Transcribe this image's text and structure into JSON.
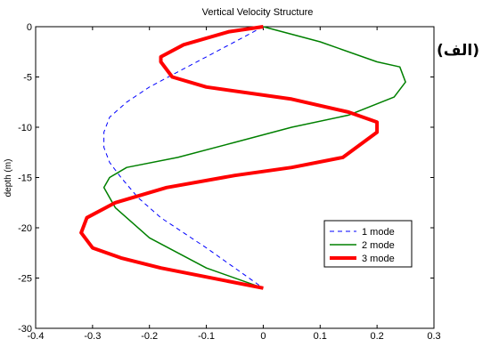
{
  "chart_data": {
    "type": "line",
    "title": "Vertical Velocity Structure",
    "xlabel": "",
    "ylabel": "depth (m)",
    "xlim": [
      -0.4,
      0.3
    ],
    "ylim": [
      -30,
      0
    ],
    "xticks": [
      "-0.4",
      "-0.3",
      "-0.2",
      "-0.1",
      "0",
      "0.1",
      "0.2",
      "0.3"
    ],
    "yticks": [
      "0",
      "-5",
      "-10",
      "-15",
      "-20",
      "-25",
      "-30"
    ],
    "grid": false,
    "legend_position": "lower-right",
    "annotation": "(الف)",
    "series": [
      {
        "name": "1 mode",
        "color": "#0000ff",
        "style": "dashed",
        "x": [
          0,
          -0.05,
          -0.1,
          -0.15,
          -0.2,
          -0.24,
          -0.27,
          -0.28,
          -0.28,
          -0.27,
          -0.25,
          -0.22,
          -0.18,
          -0.14,
          -0.1,
          -0.05,
          0
        ],
        "y": [
          0,
          -1.5,
          -3,
          -4.5,
          -6,
          -7.5,
          -9,
          -10.5,
          -12,
          -13.5,
          -15,
          -17,
          -19,
          -20.5,
          -22,
          -24,
          -26
        ]
      },
      {
        "name": "2 mode",
        "color": "#008000",
        "style": "solid",
        "x": [
          0,
          0.1,
          0.2,
          0.24,
          0.25,
          0.23,
          0.15,
          0.05,
          -0.05,
          -0.15,
          -0.24,
          -0.27,
          -0.28,
          -0.26,
          -0.2,
          -0.1,
          0
        ],
        "y": [
          0,
          -1.5,
          -3.5,
          -4,
          -5.5,
          -7,
          -8.8,
          -10,
          -11.5,
          -13,
          -14,
          -15,
          -16,
          -18,
          -21,
          -24,
          -26
        ]
      },
      {
        "name": "3 mode",
        "color": "#ff0000",
        "style": "solid",
        "x": [
          0,
          -0.06,
          -0.14,
          -0.18,
          -0.18,
          -0.16,
          -0.1,
          0.05,
          0.15,
          0.2,
          0.2,
          0.14,
          0.05,
          -0.05,
          -0.17,
          -0.26,
          -0.31,
          -0.32,
          -0.3,
          -0.25,
          -0.18,
          0
        ],
        "y": [
          0,
          -0.5,
          -1.8,
          -3,
          -3.5,
          -5,
          -6,
          -7.2,
          -8.5,
          -9.5,
          -10.5,
          -13,
          -14,
          -14.8,
          -16,
          -17.5,
          -19,
          -20.5,
          -22,
          -23,
          -24,
          -26
        ]
      }
    ]
  }
}
